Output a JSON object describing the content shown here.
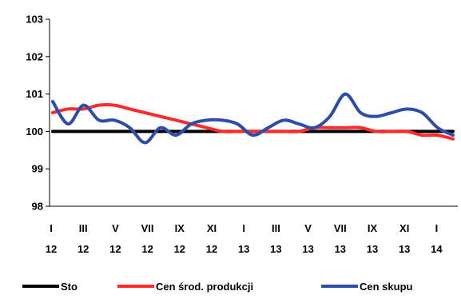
{
  "chart_data": {
    "type": "line",
    "x_top": [
      "I",
      "III",
      "V",
      "VII",
      "IX",
      "XI",
      "I",
      "III",
      "V",
      "VII",
      "IX",
      "XI",
      "I"
    ],
    "x_bottom": [
      "12",
      "12",
      "12",
      "12",
      "12",
      "12",
      "13",
      "13",
      "13",
      "13",
      "13",
      "13",
      "14"
    ],
    "yticks": [
      "98",
      "99",
      "100",
      "101",
      "102",
      "103"
    ],
    "ylim": [
      98,
      103
    ],
    "grid": false,
    "legend_position": "bottom",
    "series": [
      {
        "name": "Sto",
        "color": "#000000",
        "values": [
          100,
          100,
          100,
          100,
          100,
          100,
          100,
          100,
          100,
          100,
          100,
          100,
          100,
          100,
          100,
          100,
          100,
          100,
          100,
          100,
          100,
          100,
          100,
          100,
          100,
          100,
          100
        ]
      },
      {
        "name": "Cen środ. produkcji",
        "color": "#ff2a2a",
        "values": [
          100.5,
          100.6,
          100.6,
          100.7,
          100.7,
          100.6,
          100.5,
          100.4,
          100.3,
          100.2,
          100.1,
          100.0,
          100.0,
          100.0,
          100.0,
          100.0,
          100.0,
          100.1,
          100.1,
          100.1,
          100.1,
          100.0,
          100.0,
          100.0,
          99.9,
          99.9,
          99.8
        ]
      },
      {
        "name": "Cen skupu",
        "color": "#2e4da8",
        "values": [
          100.8,
          100.2,
          100.7,
          100.3,
          100.3,
          100.1,
          99.7,
          100.1,
          99.9,
          100.2,
          100.3,
          100.3,
          100.2,
          99.9,
          100.1,
          100.3,
          100.2,
          100.1,
          100.4,
          101.0,
          100.5,
          100.4,
          100.5,
          100.6,
          100.5,
          100.1,
          99.9
        ]
      }
    ]
  }
}
